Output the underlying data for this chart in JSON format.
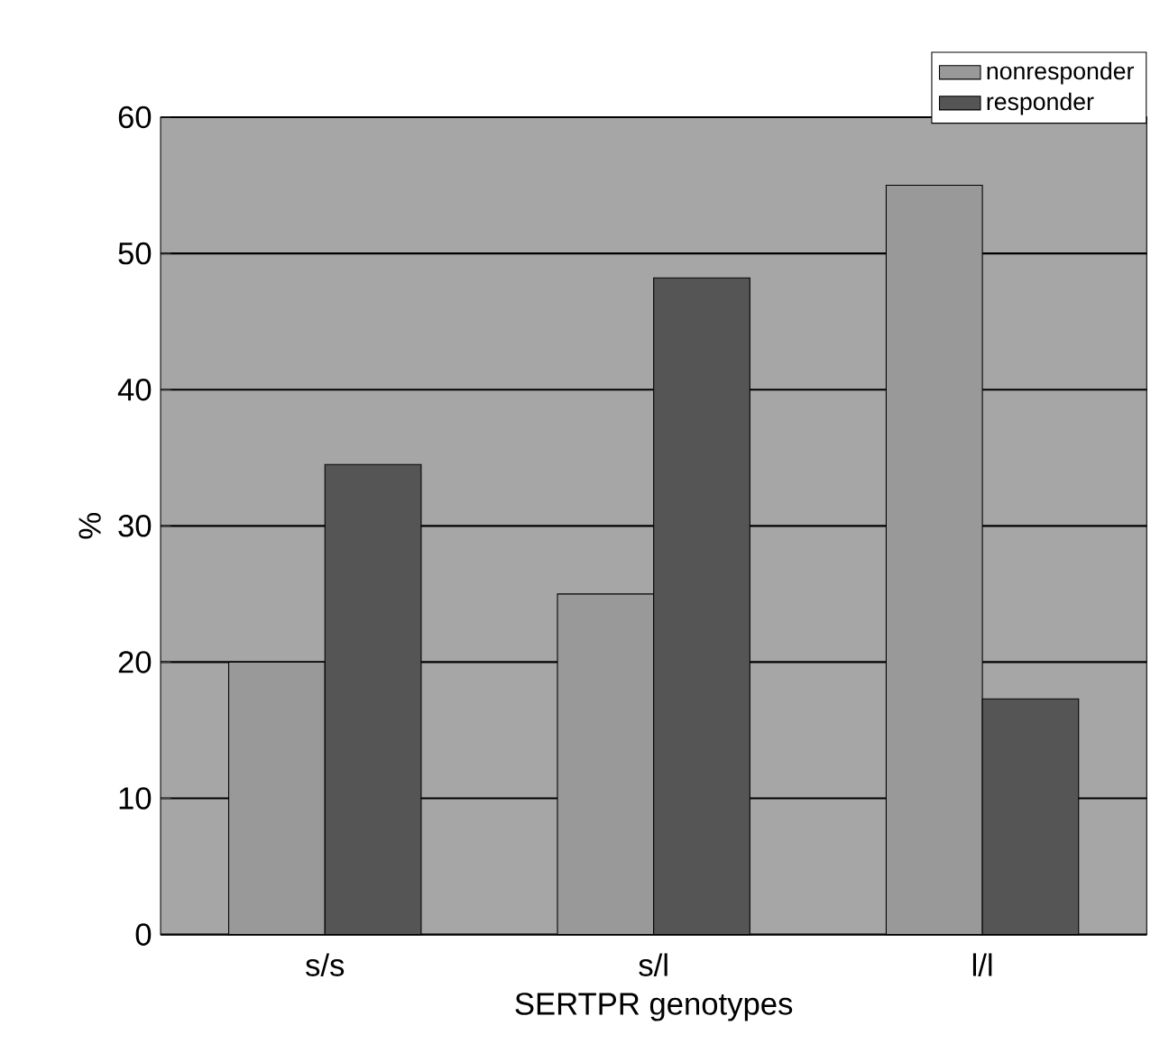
{
  "chart_data": {
    "type": "bar",
    "xlabel": "SERTPR genotypes",
    "ylabel": "%",
    "categories": [
      "s/s",
      "s/l",
      "l/l"
    ],
    "series": [
      {
        "name": "nonresponder",
        "color": "#999999",
        "values": [
          20,
          25,
          55
        ]
      },
      {
        "name": "responder",
        "color": "#555555",
        "values": [
          34.5,
          48.2,
          17.3
        ]
      }
    ],
    "ylim": [
      0,
      60
    ],
    "yticks": [
      0,
      10,
      20,
      30,
      40,
      50,
      60
    ],
    "grid": "y",
    "legend": "top right"
  }
}
